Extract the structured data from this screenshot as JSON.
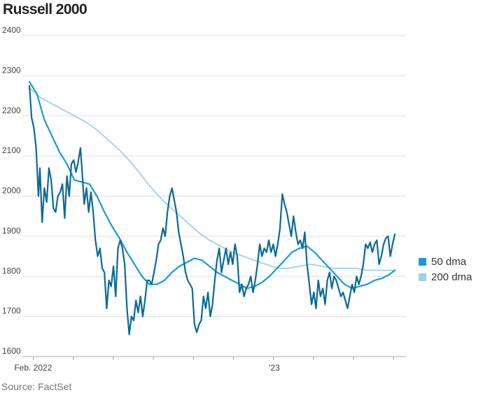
{
  "title": "Russell 2000",
  "source": "Source: FactSet",
  "colors": {
    "price": "#0b6a96",
    "ma50": "#1a9ad8",
    "ma200": "#9fd0ef",
    "grid": "#dddddd",
    "axis": "#aaaaaa"
  },
  "chart_data": {
    "type": "line",
    "title": "Russell 2000",
    "xlabel": "",
    "ylabel": "",
    "ylim": [
      1600,
      2400
    ],
    "yticks": [
      1600,
      1700,
      1800,
      1900,
      2000,
      2100,
      2200,
      2300,
      2400
    ],
    "x_tick_labels": [
      {
        "label": "Feb. 2022",
        "t": 0.01
      },
      {
        "label": "'23",
        "t": 0.653
      }
    ],
    "legend": [
      "50 dma",
      "200 dma"
    ],
    "legend_position": "right",
    "series": [
      {
        "name": "Russell 2000",
        "role": "price",
        "points": [
          [
            0,
            2275
          ],
          [
            0.006,
            2195
          ],
          [
            0.012,
            2170
          ],
          [
            0.018,
            2120
          ],
          [
            0.024,
            2000
          ],
          [
            0.028,
            2070
          ],
          [
            0.034,
            1935
          ],
          [
            0.04,
            2020
          ],
          [
            0.046,
            1985
          ],
          [
            0.052,
            2070
          ],
          [
            0.058,
            2040
          ],
          [
            0.064,
            1970
          ],
          [
            0.07,
            1960
          ],
          [
            0.076,
            2000
          ],
          [
            0.082,
            2010
          ],
          [
            0.088,
            2030
          ],
          [
            0.094,
            1945
          ],
          [
            0.1,
            2050
          ],
          [
            0.106,
            2000
          ],
          [
            0.112,
            2080
          ],
          [
            0.118,
            2090
          ],
          [
            0.124,
            2060
          ],
          [
            0.13,
            2085
          ],
          [
            0.136,
            2120
          ],
          [
            0.14,
            2070
          ],
          [
            0.146,
            1980
          ],
          [
            0.152,
            2020
          ],
          [
            0.158,
            1960
          ],
          [
            0.164,
            2010
          ],
          [
            0.17,
            1960
          ],
          [
            0.176,
            1890
          ],
          [
            0.182,
            1850
          ],
          [
            0.188,
            1870
          ],
          [
            0.194,
            1820
          ],
          [
            0.2,
            1810
          ],
          [
            0.206,
            1720
          ],
          [
            0.212,
            1790
          ],
          [
            0.218,
            1775
          ],
          [
            0.224,
            1825
          ],
          [
            0.23,
            1750
          ],
          [
            0.236,
            1870
          ],
          [
            0.242,
            1890
          ],
          [
            0.248,
            1870
          ],
          [
            0.254,
            1830
          ],
          [
            0.26,
            1720
          ],
          [
            0.266,
            1655
          ],
          [
            0.272,
            1700
          ],
          [
            0.278,
            1690
          ],
          [
            0.284,
            1740
          ],
          [
            0.29,
            1710
          ],
          [
            0.296,
            1750
          ],
          [
            0.302,
            1700
          ],
          [
            0.308,
            1740
          ],
          [
            0.314,
            1790
          ],
          [
            0.32,
            1790
          ],
          [
            0.326,
            1780
          ],
          [
            0.332,
            1810
          ],
          [
            0.338,
            1840
          ],
          [
            0.344,
            1880
          ],
          [
            0.35,
            1890
          ],
          [
            0.356,
            1920
          ],
          [
            0.362,
            1900
          ],
          [
            0.368,
            1960
          ],
          [
            0.374,
            2000
          ],
          [
            0.38,
            2020
          ],
          [
            0.386,
            1990
          ],
          [
            0.392,
            1960
          ],
          [
            0.398,
            1910
          ],
          [
            0.404,
            1880
          ],
          [
            0.41,
            1850
          ],
          [
            0.416,
            1810
          ],
          [
            0.422,
            1790
          ],
          [
            0.428,
            1780
          ],
          [
            0.434,
            1770
          ],
          [
            0.44,
            1680
          ],
          [
            0.446,
            1660
          ],
          [
            0.452,
            1680
          ],
          [
            0.458,
            1690
          ],
          [
            0.464,
            1750
          ],
          [
            0.47,
            1720
          ],
          [
            0.476,
            1760
          ],
          [
            0.482,
            1700
          ],
          [
            0.488,
            1730
          ],
          [
            0.494,
            1790
          ],
          [
            0.5,
            1840
          ],
          [
            0.506,
            1870
          ],
          [
            0.512,
            1810
          ],
          [
            0.518,
            1840
          ],
          [
            0.524,
            1870
          ],
          [
            0.53,
            1830
          ],
          [
            0.536,
            1860
          ],
          [
            0.542,
            1830
          ],
          [
            0.548,
            1880
          ],
          [
            0.554,
            1850
          ],
          [
            0.56,
            1760
          ],
          [
            0.566,
            1780
          ],
          [
            0.572,
            1750
          ],
          [
            0.578,
            1770
          ],
          [
            0.584,
            1780
          ],
          [
            0.59,
            1800
          ],
          [
            0.596,
            1760
          ],
          [
            0.602,
            1790
          ],
          [
            0.608,
            1830
          ],
          [
            0.614,
            1880
          ],
          [
            0.62,
            1850
          ],
          [
            0.626,
            1870
          ],
          [
            0.632,
            1860
          ],
          [
            0.638,
            1890
          ],
          [
            0.644,
            1860
          ],
          [
            0.65,
            1880
          ],
          [
            0.656,
            1850
          ],
          [
            0.662,
            1880
          ],
          [
            0.668,
            1920
          ],
          [
            0.674,
            2005
          ],
          [
            0.68,
            1980
          ],
          [
            0.686,
            1960
          ],
          [
            0.692,
            1930
          ],
          [
            0.698,
            1900
          ],
          [
            0.704,
            1950
          ],
          [
            0.71,
            1910
          ],
          [
            0.716,
            1880
          ],
          [
            0.722,
            1890
          ],
          [
            0.728,
            1870
          ],
          [
            0.734,
            1910
          ],
          [
            0.74,
            1830
          ],
          [
            0.746,
            1780
          ],
          [
            0.752,
            1730
          ],
          [
            0.758,
            1760
          ],
          [
            0.764,
            1720
          ],
          [
            0.77,
            1790
          ],
          [
            0.776,
            1750
          ],
          [
            0.782,
            1770
          ],
          [
            0.788,
            1730
          ],
          [
            0.794,
            1790
          ],
          [
            0.8,
            1810
          ],
          [
            0.806,
            1770
          ],
          [
            0.812,
            1800
          ],
          [
            0.818,
            1790
          ],
          [
            0.824,
            1770
          ],
          [
            0.83,
            1750
          ],
          [
            0.836,
            1760
          ],
          [
            0.842,
            1740
          ],
          [
            0.848,
            1720
          ],
          [
            0.854,
            1750
          ],
          [
            0.86,
            1780
          ],
          [
            0.866,
            1760
          ],
          [
            0.872,
            1800
          ],
          [
            0.878,
            1780
          ],
          [
            0.884,
            1800
          ],
          [
            0.89,
            1830
          ],
          [
            0.896,
            1880
          ],
          [
            0.902,
            1870
          ],
          [
            0.908,
            1885
          ],
          [
            0.914,
            1860
          ],
          [
            0.92,
            1880
          ],
          [
            0.926,
            1890
          ],
          [
            0.932,
            1830
          ],
          [
            0.938,
            1850
          ],
          [
            0.944,
            1880
          ],
          [
            0.95,
            1895
          ],
          [
            0.956,
            1900
          ],
          [
            0.962,
            1850
          ],
          [
            0.968,
            1880
          ],
          [
            0.974,
            1905
          ]
        ]
      },
      {
        "name": "50 dma",
        "role": "ma50",
        "points": [
          [
            0,
            2285
          ],
          [
            0.02,
            2255
          ],
          [
            0.04,
            2190
          ],
          [
            0.06,
            2150
          ],
          [
            0.08,
            2110
          ],
          [
            0.1,
            2080
          ],
          [
            0.12,
            2040
          ],
          [
            0.14,
            2035
          ],
          [
            0.16,
            2030
          ],
          [
            0.18,
            2000
          ],
          [
            0.2,
            1960
          ],
          [
            0.22,
            1925
          ],
          [
            0.24,
            1895
          ],
          [
            0.26,
            1860
          ],
          [
            0.28,
            1830
          ],
          [
            0.3,
            1800
          ],
          [
            0.32,
            1780
          ],
          [
            0.34,
            1780
          ],
          [
            0.36,
            1790
          ],
          [
            0.38,
            1810
          ],
          [
            0.4,
            1825
          ],
          [
            0.42,
            1835
          ],
          [
            0.44,
            1845
          ],
          [
            0.46,
            1840
          ],
          [
            0.48,
            1825
          ],
          [
            0.5,
            1810
          ],
          [
            0.52,
            1800
          ],
          [
            0.54,
            1790
          ],
          [
            0.56,
            1780
          ],
          [
            0.58,
            1770
          ],
          [
            0.6,
            1775
          ],
          [
            0.62,
            1785
          ],
          [
            0.64,
            1800
          ],
          [
            0.66,
            1820
          ],
          [
            0.68,
            1840
          ],
          [
            0.7,
            1860
          ],
          [
            0.72,
            1870
          ],
          [
            0.74,
            1875
          ],
          [
            0.76,
            1860
          ],
          [
            0.78,
            1840
          ],
          [
            0.8,
            1820
          ],
          [
            0.82,
            1800
          ],
          [
            0.84,
            1780
          ],
          [
            0.86,
            1770
          ],
          [
            0.88,
            1775
          ],
          [
            0.9,
            1780
          ],
          [
            0.92,
            1790
          ],
          [
            0.94,
            1795
          ],
          [
            0.96,
            1805
          ],
          [
            0.974,
            1815
          ]
        ]
      },
      {
        "name": "200 dma",
        "role": "ma200",
        "points": [
          [
            0,
            2270
          ],
          [
            0.03,
            2245
          ],
          [
            0.06,
            2230
          ],
          [
            0.09,
            2215
          ],
          [
            0.12,
            2200
          ],
          [
            0.15,
            2185
          ],
          [
            0.18,
            2165
          ],
          [
            0.21,
            2140
          ],
          [
            0.24,
            2115
          ],
          [
            0.27,
            2085
          ],
          [
            0.3,
            2050
          ],
          [
            0.33,
            2015
          ],
          [
            0.36,
            1985
          ],
          [
            0.39,
            1960
          ],
          [
            0.42,
            1935
          ],
          [
            0.45,
            1910
          ],
          [
            0.48,
            1890
          ],
          [
            0.51,
            1875
          ],
          [
            0.54,
            1860
          ],
          [
            0.57,
            1850
          ],
          [
            0.6,
            1840
          ],
          [
            0.63,
            1830
          ],
          [
            0.66,
            1820
          ],
          [
            0.69,
            1820
          ],
          [
            0.72,
            1825
          ],
          [
            0.75,
            1830
          ],
          [
            0.78,
            1825
          ],
          [
            0.81,
            1820
          ],
          [
            0.84,
            1820
          ],
          [
            0.87,
            1820
          ],
          [
            0.9,
            1815
          ],
          [
            0.93,
            1815
          ],
          [
            0.96,
            1815
          ],
          [
            0.974,
            1815
          ]
        ]
      }
    ]
  }
}
